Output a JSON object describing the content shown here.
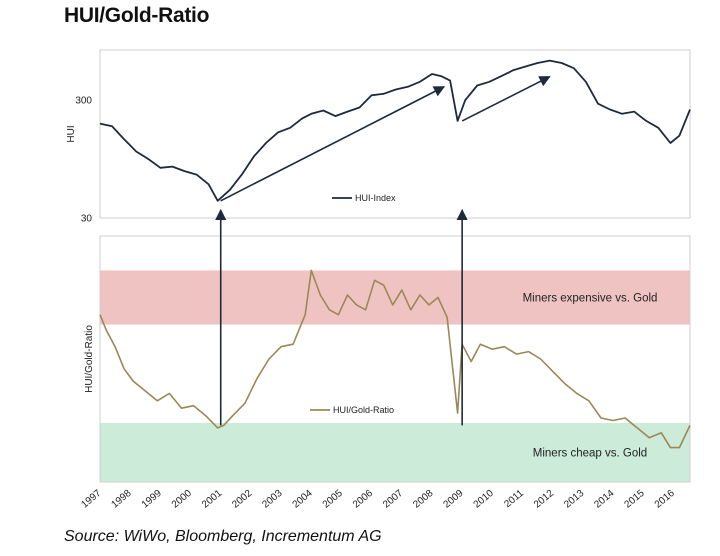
{
  "title": "HUI/Gold-Ratio",
  "source": "Source: WiWo, Bloomberg, Incrementum AG",
  "chart_data": [
    {
      "type": "line",
      "name": "hui-index-panel",
      "ylabel": "HUI",
      "yscale": "log",
      "ylim": [
        30,
        800
      ],
      "yticks": [
        {
          "value": 30,
          "label": "30"
        },
        {
          "value": 300,
          "label": "300"
        }
      ],
      "xlim": [
        1997.0,
        2016.55
      ],
      "legend": "HUI-Index",
      "color": "#1e2a3c",
      "series": [
        {
          "name": "HUI-Index",
          "x": [
            1997.0,
            1997.4,
            1997.8,
            1998.2,
            1998.6,
            1999.0,
            1999.4,
            1999.8,
            2000.2,
            2000.6,
            2000.9,
            2001.3,
            2001.7,
            2002.1,
            2002.5,
            2002.9,
            2003.3,
            2003.7,
            2004.0,
            2004.4,
            2004.8,
            2005.2,
            2005.6,
            2006.0,
            2006.4,
            2006.8,
            2007.2,
            2007.6,
            2008.0,
            2008.3,
            2008.6,
            2008.85,
            2009.1,
            2009.5,
            2009.9,
            2010.3,
            2010.7,
            2011.1,
            2011.5,
            2011.9,
            2012.3,
            2012.7,
            2013.1,
            2013.5,
            2013.9,
            2014.3,
            2014.7,
            2015.1,
            2015.5,
            2015.9,
            2016.2,
            2016.55
          ],
          "y": [
            190,
            180,
            140,
            110,
            95,
            80,
            82,
            75,
            70,
            58,
            42,
            52,
            70,
            100,
            130,
            160,
            175,
            210,
            230,
            245,
            220,
            240,
            260,
            330,
            340,
            370,
            390,
            430,
            500,
            480,
            440,
            200,
            300,
            400,
            430,
            480,
            540,
            580,
            620,
            650,
            620,
            560,
            430,
            280,
            250,
            230,
            240,
            200,
            175,
            130,
            150,
            250
          ]
        }
      ],
      "annotations": [
        {
          "type": "arrow",
          "from": {
            "x": 2001.0,
            "y": 42
          },
          "to": {
            "x": 2008.4,
            "y": 390
          }
        },
        {
          "type": "arrow",
          "from": {
            "x": 2009.0,
            "y": 200
          },
          "to": {
            "x": 2011.9,
            "y": 475
          }
        }
      ]
    },
    {
      "type": "line",
      "name": "hui-gold-ratio-panel",
      "ylabel": "HUI/Gold-Ratio",
      "xlim": [
        1997.0,
        2016.55
      ],
      "ylim": [
        0,
        1
      ],
      "legend": "HUI/Gold-Ratio",
      "color": "#9c8856",
      "bands": [
        {
          "label": "Miners expensive vs. Gold",
          "from": 0.64,
          "to": 0.86,
          "color": "#f0c3c3"
        },
        {
          "label": "Miners cheap vs. Gold",
          "from": 0.0,
          "to": 0.24,
          "color": "#cdebd9"
        }
      ],
      "series": [
        {
          "name": "HUI/Gold-Ratio",
          "x": [
            1997.0,
            1997.2,
            1997.5,
            1997.8,
            1998.1,
            1998.5,
            1998.9,
            1999.3,
            1999.7,
            2000.1,
            2000.5,
            2000.9,
            2001.1,
            2001.4,
            2001.8,
            2002.2,
            2002.6,
            2003.0,
            2003.4,
            2003.8,
            2004.0,
            2004.3,
            2004.6,
            2004.9,
            2005.2,
            2005.5,
            2005.8,
            2006.1,
            2006.4,
            2006.7,
            2007.0,
            2007.3,
            2007.6,
            2007.9,
            2008.2,
            2008.5,
            2008.85,
            2009.0,
            2009.3,
            2009.6,
            2010.0,
            2010.4,
            2010.8,
            2011.2,
            2011.6,
            2012.0,
            2012.4,
            2012.8,
            2013.2,
            2013.6,
            2014.0,
            2014.4,
            2014.8,
            2015.2,
            2015.6,
            2015.9,
            2016.2,
            2016.55
          ],
          "y": [
            0.68,
            0.62,
            0.55,
            0.46,
            0.41,
            0.37,
            0.33,
            0.36,
            0.3,
            0.31,
            0.27,
            0.22,
            0.23,
            0.27,
            0.32,
            0.42,
            0.5,
            0.55,
            0.56,
            0.68,
            0.86,
            0.76,
            0.7,
            0.68,
            0.76,
            0.72,
            0.7,
            0.82,
            0.8,
            0.72,
            0.78,
            0.7,
            0.76,
            0.72,
            0.75,
            0.67,
            0.28,
            0.56,
            0.49,
            0.56,
            0.54,
            0.55,
            0.52,
            0.53,
            0.5,
            0.45,
            0.4,
            0.36,
            0.33,
            0.26,
            0.25,
            0.26,
            0.22,
            0.18,
            0.2,
            0.14,
            0.14,
            0.23
          ]
        }
      ],
      "x_ticks": [
        "1997",
        "1998",
        "1999",
        "2000",
        "2001",
        "2002",
        "2003",
        "2004",
        "2005",
        "2006",
        "2007",
        "2008",
        "2009",
        "2010",
        "2011",
        "2012",
        "2013",
        "2014",
        "2015",
        "2016"
      ],
      "annotations": [
        {
          "type": "vline",
          "x": 2001.0
        },
        {
          "type": "vline",
          "x": 2009.0
        }
      ]
    }
  ]
}
